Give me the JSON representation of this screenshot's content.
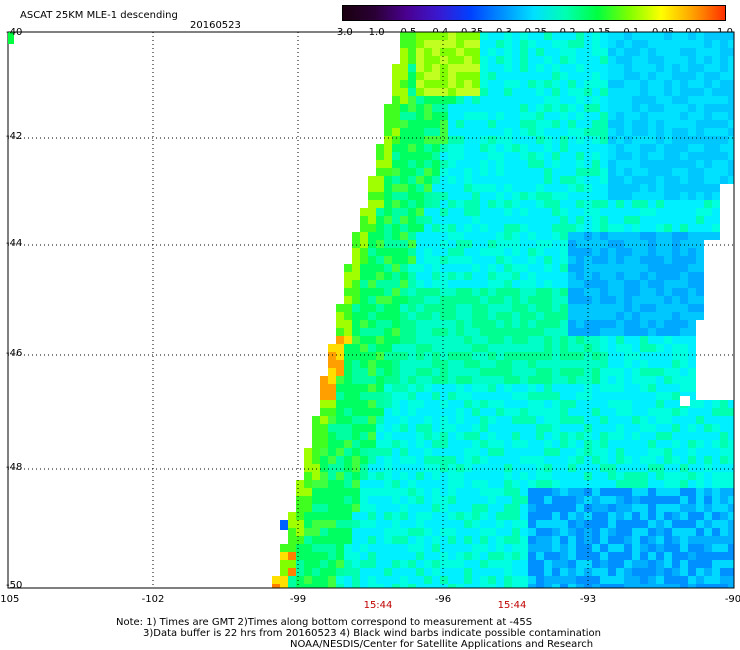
{
  "header": {
    "title": "ASCAT 25KM MLE-1 descending",
    "date": "20160523"
  },
  "colorbar": {
    "labels": [
      "-3.0",
      "-1.0",
      "-0.5",
      "-0.4",
      "-0.35",
      "-0.3",
      "-0.25",
      "-0.2",
      "-0.15",
      "-0.1",
      "-0.05",
      "0.0",
      "1.0"
    ],
    "colors": [
      "#1a0010",
      "#2a0035",
      "#4a0090",
      "#3a18d0",
      "#0040ff",
      "#0090ff",
      "#00e0ff",
      "#00ffb0",
      "#00ff40",
      "#80ff00",
      "#ffff00",
      "#ffa000",
      "#ff3000"
    ]
  },
  "map": {
    "lon_min": -105,
    "lon_max": -90,
    "lat_top": -40,
    "lat_bottom": -50,
    "x_ticks": [
      "-105",
      "-102",
      "-99",
      "-96",
      "-93",
      "-90"
    ],
    "y_ticks": [
      "-40",
      "-42",
      "-44",
      "-46",
      "-48",
      "-50"
    ],
    "times": [
      "15:44",
      "15:44"
    ]
  },
  "notes": {
    "line1": "Note: 1) Times are GMT 2)Times along bottom correspond to measurement at -45S",
    "line2": "3)Data buffer is 22 hrs from 20160523 4) Black wind barbs indicate possible contamination",
    "line3": "NOAA/NESDIS/Center for Satellite Applications and Research"
  }
}
